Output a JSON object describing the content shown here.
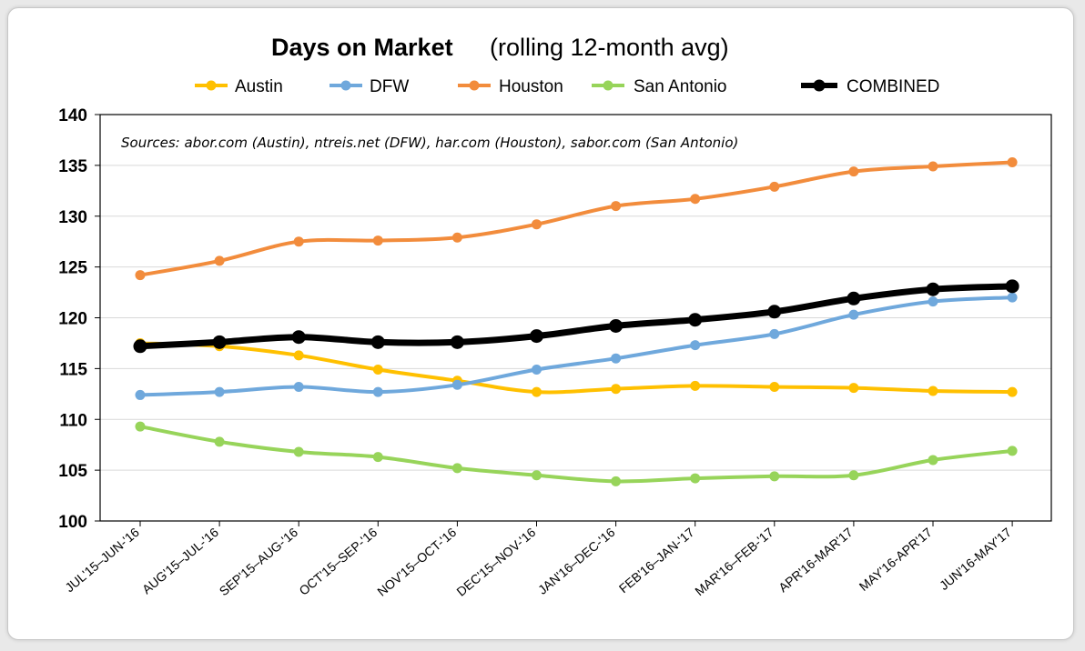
{
  "chart_data": {
    "type": "line",
    "title": "Days on Market",
    "subtitle": "(rolling 12-month avg)",
    "annotation": "Sources:  abor.com (Austin), ntreis.net (DFW), har.com (Houston), sabor.com (San Antonio)",
    "legend_position": "top",
    "grid": true,
    "ylim": [
      100,
      140
    ],
    "yticks": [
      "100",
      "105",
      "110",
      "115",
      "120",
      "125",
      "130",
      "135",
      "140"
    ],
    "categories": [
      "JUL'15–JUN-'16",
      "AUG'15–JUL-'16",
      "SEP'15–AUG-'16",
      "OCT'15–SEP-'16",
      "NOV'15–OCT-'16",
      "DEC'15–NOV-'16",
      "JAN'16–DEC-'16",
      "FEB'16–JAN-'17",
      "MAR'16–FEB-'17",
      "APR'16-MAR'17",
      "MAY'16-APR'17",
      "JUN'16-MAY'17"
    ],
    "series": [
      {
        "name": "Austin",
        "color": "#FFC000",
        "values": [
          117.5,
          117.2,
          116.3,
          114.9,
          113.8,
          112.7,
          113.0,
          113.3,
          113.2,
          113.1,
          112.8,
          112.7
        ]
      },
      {
        "name": "DFW",
        "color": "#6FA8DC",
        "values": [
          112.4,
          112.7,
          113.2,
          112.7,
          113.4,
          114.9,
          116.0,
          117.3,
          118.4,
          120.3,
          121.6,
          122.0
        ]
      },
      {
        "name": "Houston",
        "color": "#F28C3C",
        "values": [
          124.2,
          125.6,
          127.5,
          127.6,
          127.9,
          129.2,
          131.0,
          131.7,
          132.9,
          134.4,
          134.9,
          135.3
        ]
      },
      {
        "name": "San Antonio",
        "color": "#97D45A",
        "values": [
          109.3,
          107.8,
          106.8,
          106.3,
          105.2,
          104.5,
          103.9,
          104.2,
          104.4,
          104.5,
          106.0,
          106.9
        ]
      },
      {
        "name": "COMBINED",
        "color": "#000000",
        "values": [
          117.2,
          117.6,
          118.1,
          117.6,
          117.6,
          118.2,
          119.2,
          119.8,
          120.6,
          121.9,
          122.8,
          123.1
        ]
      }
    ]
  }
}
